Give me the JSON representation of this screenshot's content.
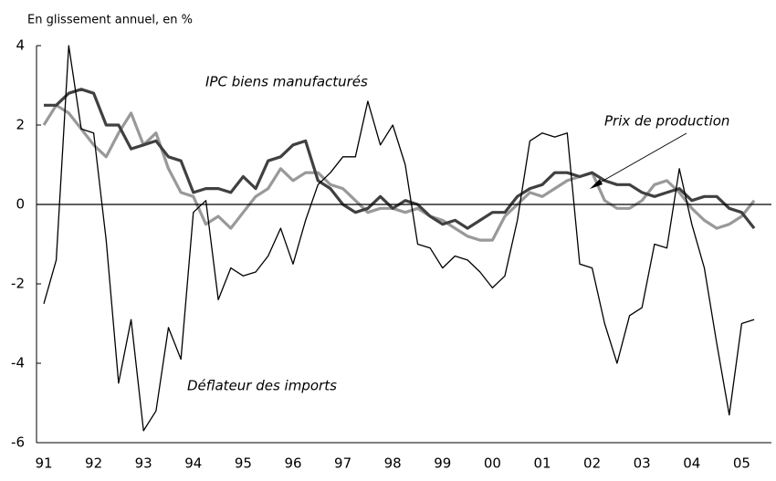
{
  "chart_data": {
    "type": "line",
    "title": "En glissement annuel, en %",
    "categories": [
      "91",
      null,
      null,
      null,
      "92",
      null,
      null,
      null,
      "93",
      null,
      null,
      null,
      "94",
      null,
      null,
      null,
      "95",
      null,
      null,
      null,
      "96",
      null,
      null,
      null,
      "97",
      null,
      null,
      null,
      "98",
      null,
      null,
      null,
      "99",
      null,
      null,
      null,
      "00",
      null,
      null,
      null,
      "01",
      null,
      null,
      null,
      "02",
      null,
      null,
      null,
      "03",
      null,
      null,
      null,
      "04",
      null,
      null,
      null,
      "05",
      null
    ],
    "series": [
      {
        "name": "Déflateur des imports",
        "color": "#000000",
        "values": [
          -2.5,
          -1.4,
          4.0,
          1.9,
          1.8,
          -0.9,
          -4.5,
          -2.9,
          -5.7,
          -5.2,
          -3.1,
          -3.9,
          -0.2,
          0.1,
          -2.4,
          -1.6,
          -1.8,
          -1.7,
          -1.3,
          -0.6,
          -1.5,
          -0.4,
          0.5,
          0.8,
          1.2,
          1.2,
          2.6,
          1.5,
          2.0,
          1.0,
          -1.0,
          -1.1,
          -1.6,
          -1.3,
          -1.4,
          -1.7,
          -2.1,
          -1.8,
          -0.4,
          1.6,
          1.8,
          1.7,
          1.8,
          -1.5,
          -1.6,
          -3.0,
          -4.0,
          -2.8,
          -2.6,
          -1.0,
          -1.1,
          0.9,
          -0.5,
          -1.6,
          -3.5,
          -5.3,
          -3.0,
          -2.9
        ]
      },
      {
        "name": "IPC biens manufacturés",
        "color": "#404040",
        "values": [
          2.5,
          2.5,
          2.8,
          2.9,
          2.8,
          2.0,
          2.0,
          1.4,
          1.5,
          1.6,
          1.2,
          1.1,
          0.3,
          0.4,
          0.4,
          0.3,
          0.7,
          0.4,
          1.1,
          1.2,
          1.5,
          1.6,
          0.6,
          0.4,
          0.0,
          -0.2,
          -0.1,
          0.2,
          -0.1,
          0.1,
          0.0,
          -0.3,
          -0.5,
          -0.4,
          -0.6,
          -0.4,
          -0.2,
          -0.2,
          0.2,
          0.4,
          0.5,
          0.8,
          0.8,
          0.7,
          0.8,
          0.6,
          0.5,
          0.5,
          0.3,
          0.2,
          0.3,
          0.4,
          0.1,
          0.2,
          0.2,
          -0.1,
          -0.2,
          -0.6
        ]
      },
      {
        "name": "Prix de production",
        "color": "#999999",
        "values": [
          2.0,
          2.5,
          2.3,
          1.9,
          1.5,
          1.2,
          1.8,
          2.3,
          1.5,
          1.8,
          0.9,
          0.3,
          0.2,
          -0.5,
          -0.3,
          -0.6,
          -0.2,
          0.2,
          0.4,
          0.9,
          0.6,
          0.8,
          0.8,
          0.5,
          0.4,
          0.1,
          -0.2,
          -0.1,
          -0.1,
          -0.2,
          -0.1,
          -0.3,
          -0.4,
          -0.6,
          -0.8,
          -0.9,
          -0.9,
          -0.3,
          0.0,
          0.3,
          0.2,
          0.4,
          0.6,
          0.7,
          0.8,
          0.1,
          -0.1,
          -0.1,
          0.1,
          0.5,
          0.6,
          0.3,
          -0.1,
          -0.4,
          -0.6,
          -0.5,
          -0.3,
          0.1
        ]
      }
    ],
    "ylim": [
      -6,
      4
    ],
    "yticks": [
      -6,
      -4,
      -2,
      0,
      2,
      4
    ]
  }
}
